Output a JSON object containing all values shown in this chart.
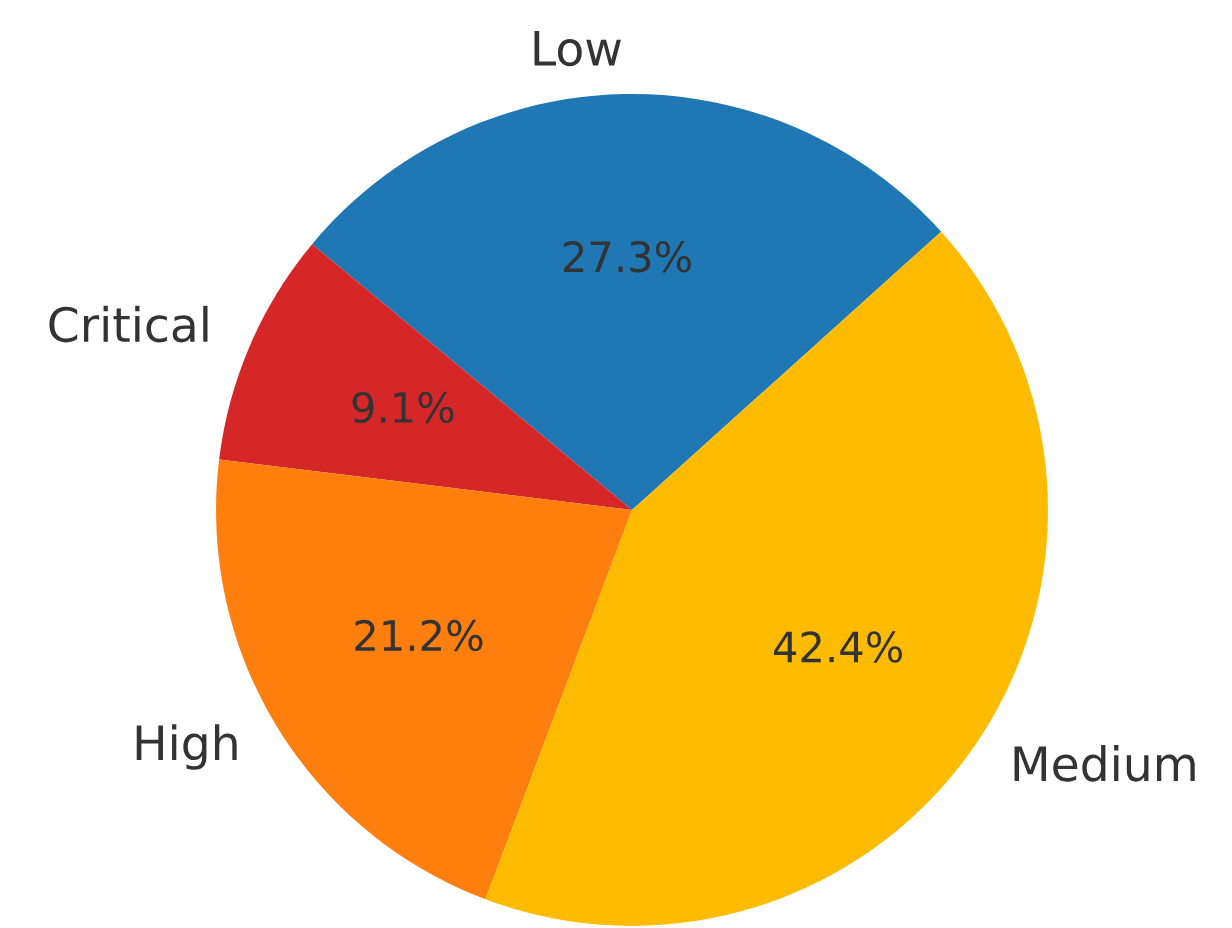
{
  "chart_data": {
    "type": "pie",
    "categories": [
      "Low",
      "Critical",
      "High",
      "Medium"
    ],
    "values": [
      27.3,
      9.1,
      21.2,
      42.4
    ],
    "colors": [
      "#1f77b4",
      "#d62728",
      "#ff7f0e",
      "#ffbb00"
    ],
    "value_labels": [
      "27.3%",
      "9.1%",
      "21.2%",
      "42.4%"
    ]
  }
}
